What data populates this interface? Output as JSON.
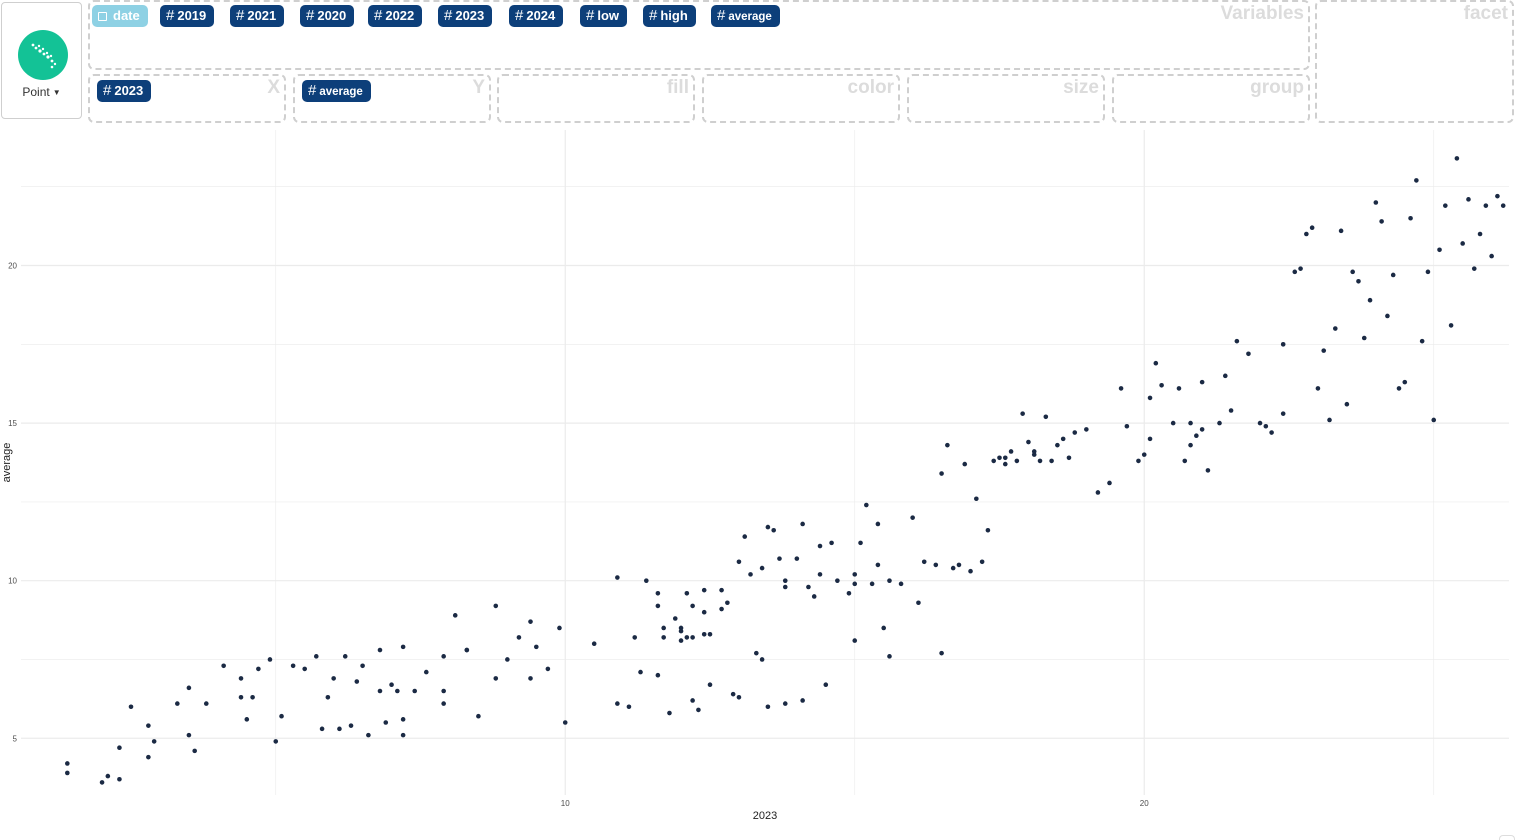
{
  "geom": {
    "label": "Point",
    "icon": "scatter-icon"
  },
  "variables": {
    "zone_label": "Variables",
    "pills": [
      {
        "name": "date",
        "kind": "date"
      },
      {
        "name": "2019",
        "kind": "numeric"
      },
      {
        "name": "2021",
        "kind": "numeric"
      },
      {
        "name": "2020",
        "kind": "numeric"
      },
      {
        "name": "2022",
        "kind": "numeric"
      },
      {
        "name": "2023",
        "kind": "numeric"
      },
      {
        "name": "2024",
        "kind": "numeric"
      },
      {
        "name": "low",
        "kind": "numeric"
      },
      {
        "name": "high",
        "kind": "numeric"
      },
      {
        "name": "average",
        "kind": "numeric"
      }
    ]
  },
  "facet": {
    "label": "facet"
  },
  "mappings": {
    "x": {
      "label": "X",
      "pill": "2023"
    },
    "y": {
      "label": "Y",
      "pill": "average"
    },
    "fill": {
      "label": "fill"
    },
    "color": {
      "label": "color"
    },
    "size": {
      "label": "size"
    },
    "group": {
      "label": "group"
    }
  },
  "colors": {
    "accent": "#13c296",
    "pill": "#0d3f7a",
    "pill_date": "#8ed1e4",
    "point": "#1b2a44",
    "grid": "#ebebeb"
  },
  "chart_data": {
    "type": "scatter",
    "xlabel": "2023",
    "ylabel": "average",
    "x_ticks": [
      10,
      20
    ],
    "y_ticks": [
      5,
      10,
      15,
      20
    ],
    "xlim": [
      0.6,
      26.3
    ],
    "ylim": [
      3.2,
      24.3
    ],
    "grid": true,
    "points": [
      [
        1.4,
        4.2
      ],
      [
        1.4,
        3.9
      ],
      [
        2.0,
        3.6
      ],
      [
        2.1,
        3.8
      ],
      [
        2.3,
        3.7
      ],
      [
        2.3,
        4.7
      ],
      [
        2.5,
        6.0
      ],
      [
        2.8,
        4.4
      ],
      [
        2.8,
        5.4
      ],
      [
        2.9,
        4.9
      ],
      [
        3.3,
        6.1
      ],
      [
        3.5,
        6.6
      ],
      [
        3.5,
        5.1
      ],
      [
        3.6,
        4.6
      ],
      [
        3.8,
        6.1
      ],
      [
        4.1,
        7.3
      ],
      [
        4.4,
        6.9
      ],
      [
        4.4,
        6.3
      ],
      [
        4.5,
        5.6
      ],
      [
        4.6,
        6.3
      ],
      [
        4.7,
        7.2
      ],
      [
        4.9,
        7.5
      ],
      [
        5.0,
        4.9
      ],
      [
        5.1,
        5.7
      ],
      [
        5.3,
        7.3
      ],
      [
        5.5,
        7.2
      ],
      [
        5.7,
        7.6
      ],
      [
        5.8,
        5.3
      ],
      [
        5.9,
        6.3
      ],
      [
        6.0,
        6.9
      ],
      [
        6.1,
        5.3
      ],
      [
        6.2,
        7.6
      ],
      [
        6.3,
        5.4
      ],
      [
        6.4,
        6.8
      ],
      [
        6.5,
        7.3
      ],
      [
        6.6,
        5.1
      ],
      [
        6.8,
        6.5
      ],
      [
        6.8,
        7.8
      ],
      [
        6.9,
        5.5
      ],
      [
        7.0,
        6.7
      ],
      [
        7.1,
        6.5
      ],
      [
        7.2,
        7.9
      ],
      [
        7.2,
        5.1
      ],
      [
        7.2,
        5.6
      ],
      [
        7.4,
        6.5
      ],
      [
        7.6,
        7.1
      ],
      [
        7.9,
        6.5
      ],
      [
        7.9,
        7.6
      ],
      [
        7.9,
        6.1
      ],
      [
        8.1,
        8.9
      ],
      [
        8.3,
        7.8
      ],
      [
        8.3,
        7.8
      ],
      [
        8.5,
        5.7
      ],
      [
        8.8,
        9.2
      ],
      [
        8.8,
        6.9
      ],
      [
        9.0,
        7.5
      ],
      [
        9.2,
        8.2
      ],
      [
        9.4,
        8.7
      ],
      [
        9.4,
        6.9
      ],
      [
        9.5,
        7.9
      ],
      [
        9.7,
        7.2
      ],
      [
        9.9,
        8.5
      ],
      [
        10.0,
        5.5
      ],
      [
        10.5,
        8.0
      ],
      [
        10.9,
        10.1
      ],
      [
        10.9,
        6.1
      ],
      [
        11.1,
        6.0
      ],
      [
        11.2,
        8.2
      ],
      [
        11.3,
        7.1
      ],
      [
        11.4,
        10.0
      ],
      [
        11.6,
        7.0
      ],
      [
        11.6,
        9.2
      ],
      [
        11.6,
        9.6
      ],
      [
        11.7,
        8.2
      ],
      [
        11.7,
        8.5
      ],
      [
        11.8,
        5.8
      ],
      [
        11.9,
        8.8
      ],
      [
        12.0,
        8.1
      ],
      [
        12.0,
        8.5
      ],
      [
        12.0,
        8.4
      ],
      [
        12.1,
        9.6
      ],
      [
        12.1,
        8.2
      ],
      [
        12.2,
        6.2
      ],
      [
        12.2,
        9.2
      ],
      [
        12.2,
        8.2
      ],
      [
        12.3,
        5.9
      ],
      [
        12.4,
        8.3
      ],
      [
        12.4,
        9.7
      ],
      [
        12.4,
        9.0
      ],
      [
        12.5,
        6.7
      ],
      [
        12.5,
        8.3
      ],
      [
        12.7,
        9.7
      ],
      [
        12.7,
        9.1
      ],
      [
        12.8,
        9.3
      ],
      [
        12.9,
        6.4
      ],
      [
        13.0,
        6.3
      ],
      [
        13.0,
        10.6
      ],
      [
        13.1,
        11.4
      ],
      [
        13.2,
        10.2
      ],
      [
        13.3,
        7.7
      ],
      [
        13.4,
        7.5
      ],
      [
        13.4,
        10.4
      ],
      [
        13.5,
        6.0
      ],
      [
        13.5,
        11.7
      ],
      [
        13.6,
        11.6
      ],
      [
        13.7,
        10.7
      ],
      [
        13.8,
        6.1
      ],
      [
        13.8,
        10.0
      ],
      [
        13.8,
        9.8
      ],
      [
        14.0,
        10.7
      ],
      [
        14.1,
        6.2
      ],
      [
        14.1,
        11.8
      ],
      [
        14.2,
        9.8
      ],
      [
        14.3,
        9.5
      ],
      [
        14.4,
        10.2
      ],
      [
        14.4,
        11.1
      ],
      [
        14.5,
        6.7
      ],
      [
        14.6,
        11.2
      ],
      [
        14.7,
        10.0
      ],
      [
        14.9,
        9.6
      ],
      [
        15.0,
        8.1
      ],
      [
        15.0,
        10.2
      ],
      [
        15.0,
        9.9
      ],
      [
        15.1,
        11.2
      ],
      [
        15.2,
        12.4
      ],
      [
        15.3,
        9.9
      ],
      [
        15.4,
        11.8
      ],
      [
        15.4,
        10.5
      ],
      [
        15.5,
        8.5
      ],
      [
        15.6,
        7.6
      ],
      [
        15.6,
        10.0
      ],
      [
        15.8,
        9.9
      ],
      [
        16.0,
        12.0
      ],
      [
        16.1,
        9.3
      ],
      [
        16.2,
        10.6
      ],
      [
        16.4,
        10.5
      ],
      [
        16.5,
        7.7
      ],
      [
        16.5,
        13.4
      ],
      [
        16.6,
        14.3
      ],
      [
        16.7,
        10.4
      ],
      [
        16.8,
        10.5
      ],
      [
        16.9,
        13.7
      ],
      [
        17.0,
        10.3
      ],
      [
        17.1,
        12.6
      ],
      [
        17.2,
        10.6
      ],
      [
        17.3,
        11.6
      ],
      [
        17.4,
        13.8
      ],
      [
        17.5,
        13.9
      ],
      [
        17.6,
        13.9
      ],
      [
        17.6,
        13.7
      ],
      [
        17.7,
        14.1
      ],
      [
        17.8,
        13.8
      ],
      [
        17.9,
        15.3
      ],
      [
        18.0,
        14.4
      ],
      [
        18.1,
        14.1
      ],
      [
        18.1,
        14.0
      ],
      [
        18.2,
        13.8
      ],
      [
        18.3,
        15.2
      ],
      [
        18.4,
        13.8
      ],
      [
        18.5,
        14.3
      ],
      [
        18.6,
        14.5
      ],
      [
        18.7,
        13.9
      ],
      [
        18.8,
        14.7
      ],
      [
        19.0,
        14.8
      ],
      [
        19.2,
        12.8
      ],
      [
        19.4,
        13.1
      ],
      [
        19.6,
        16.1
      ],
      [
        19.7,
        14.9
      ],
      [
        19.9,
        13.8
      ],
      [
        20.0,
        14.0
      ],
      [
        20.1,
        14.5
      ],
      [
        20.1,
        15.8
      ],
      [
        20.2,
        16.9
      ],
      [
        20.3,
        16.2
      ],
      [
        20.5,
        15.0
      ],
      [
        20.6,
        16.1
      ],
      [
        20.7,
        13.8
      ],
      [
        20.8,
        14.3
      ],
      [
        20.8,
        15.0
      ],
      [
        20.9,
        14.6
      ],
      [
        21.0,
        16.3
      ],
      [
        21.0,
        14.8
      ],
      [
        21.1,
        13.5
      ],
      [
        21.3,
        15.0
      ],
      [
        21.4,
        16.5
      ],
      [
        21.5,
        15.4
      ],
      [
        21.6,
        17.6
      ],
      [
        21.8,
        17.2
      ],
      [
        22.0,
        15.0
      ],
      [
        22.1,
        14.9
      ],
      [
        22.2,
        14.7
      ],
      [
        22.4,
        17.5
      ],
      [
        22.4,
        15.3
      ],
      [
        22.6,
        19.8
      ],
      [
        22.7,
        19.9
      ],
      [
        22.8,
        21.0
      ],
      [
        22.9,
        21.2
      ],
      [
        23.0,
        16.1
      ],
      [
        23.1,
        17.3
      ],
      [
        23.2,
        15.1
      ],
      [
        23.3,
        18.0
      ],
      [
        23.4,
        21.1
      ],
      [
        23.5,
        15.6
      ],
      [
        23.6,
        19.8
      ],
      [
        23.7,
        19.5
      ],
      [
        23.8,
        17.7
      ],
      [
        23.9,
        18.9
      ],
      [
        24.0,
        22.0
      ],
      [
        24.1,
        21.4
      ],
      [
        24.2,
        18.4
      ],
      [
        24.3,
        19.7
      ],
      [
        24.4,
        16.1
      ],
      [
        24.5,
        16.3
      ],
      [
        24.6,
        21.5
      ],
      [
        24.7,
        22.7
      ],
      [
        24.8,
        17.6
      ],
      [
        24.9,
        19.8
      ],
      [
        25.0,
        15.1
      ],
      [
        25.1,
        20.5
      ],
      [
        25.2,
        21.9
      ],
      [
        25.3,
        18.1
      ],
      [
        25.4,
        23.4
      ],
      [
        25.5,
        20.7
      ],
      [
        25.6,
        22.1
      ],
      [
        25.7,
        19.9
      ],
      [
        25.8,
        21.0
      ],
      [
        25.9,
        21.9
      ],
      [
        26.0,
        20.3
      ],
      [
        26.1,
        22.2
      ],
      [
        26.2,
        21.9
      ]
    ]
  }
}
